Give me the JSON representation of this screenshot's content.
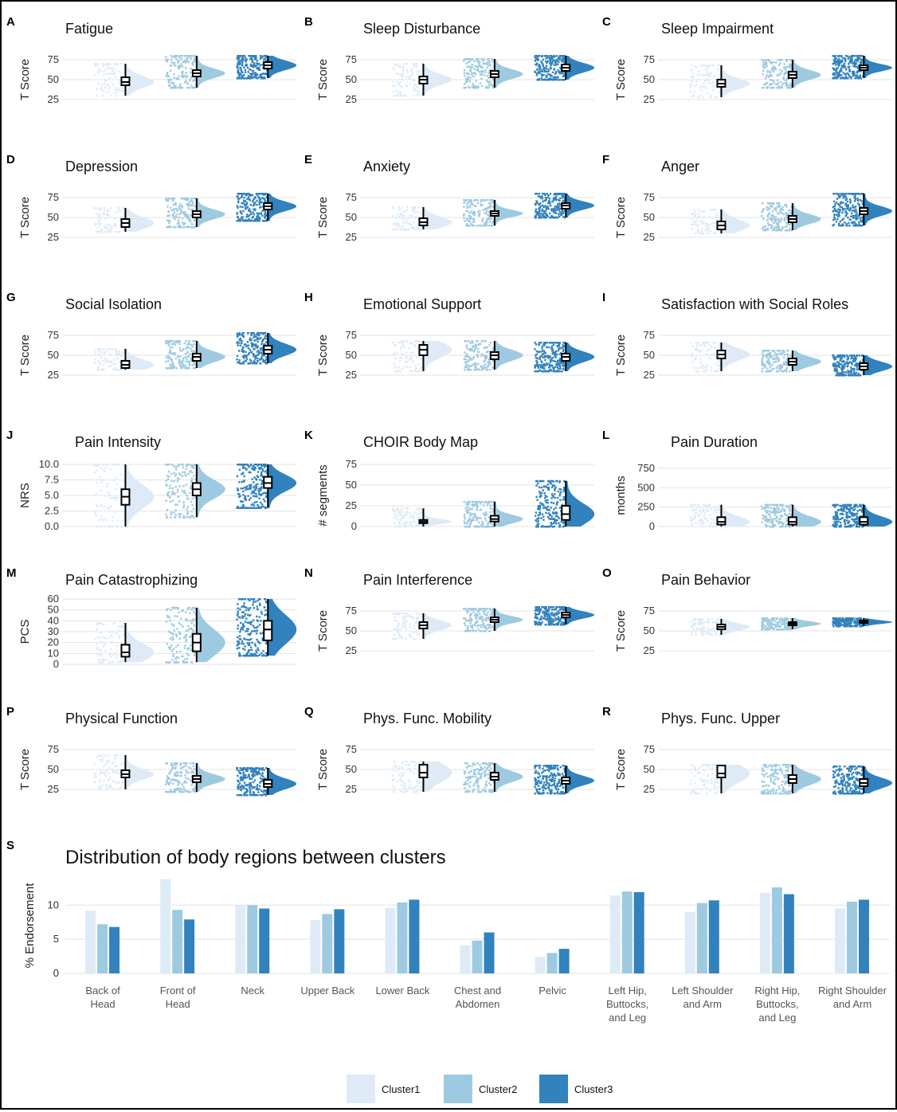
{
  "colors": {
    "c1": "#deebf7",
    "c2": "#9ecae1",
    "c3": "#3182bd"
  },
  "chart_data": [
    {
      "type": "violin",
      "letter": "A",
      "title": "Fatigue",
      "ylabel": "T Score",
      "ylim": [
        20,
        80
      ],
      "ticks": [
        "25",
        "50",
        "75"
      ],
      "tickvals": [
        25,
        50,
        75
      ],
      "clusters": [
        {
          "median": 47,
          "q1": 43,
          "q3": 53,
          "min": 30,
          "max": 70
        },
        {
          "median": 58,
          "q1": 54,
          "q3": 62,
          "min": 40,
          "max": 80
        },
        {
          "median": 68,
          "q1": 64,
          "q3": 72,
          "min": 52,
          "max": 80
        }
      ]
    },
    {
      "type": "violin",
      "letter": "B",
      "title": "Sleep Disturbance",
      "ylabel": "T Score",
      "ylim": [
        20,
        80
      ],
      "ticks": [
        "25",
        "50",
        "75"
      ],
      "tickvals": [
        25,
        50,
        75
      ],
      "clusters": [
        {
          "median": 50,
          "q1": 45,
          "q3": 54,
          "min": 30,
          "max": 70
        },
        {
          "median": 57,
          "q1": 53,
          "q3": 61,
          "min": 40,
          "max": 76
        },
        {
          "median": 65,
          "q1": 61,
          "q3": 69,
          "min": 50,
          "max": 80
        }
      ]
    },
    {
      "type": "violin",
      "letter": "C",
      "title": "Sleep Impairment",
      "ylabel": "T Score",
      "ylim": [
        20,
        80
      ],
      "ticks": [
        "25",
        "50",
        "75"
      ],
      "tickvals": [
        25,
        50,
        75
      ],
      "clusters": [
        {
          "median": 45,
          "q1": 41,
          "q3": 50,
          "min": 28,
          "max": 68
        },
        {
          "median": 56,
          "q1": 52,
          "q3": 60,
          "min": 40,
          "max": 75
        },
        {
          "median": 65,
          "q1": 62,
          "q3": 68,
          "min": 52,
          "max": 80
        }
      ]
    },
    {
      "type": "violin",
      "letter": "D",
      "title": "Depression",
      "ylabel": "T Score",
      "ylim": [
        20,
        80
      ],
      "ticks": [
        "25",
        "50",
        "75"
      ],
      "tickvals": [
        25,
        50,
        75
      ],
      "clusters": [
        {
          "median": 43,
          "q1": 38,
          "q3": 48,
          "min": 32,
          "max": 62
        },
        {
          "median": 54,
          "q1": 50,
          "q3": 58,
          "min": 38,
          "max": 74
        },
        {
          "median": 64,
          "q1": 60,
          "q3": 68,
          "min": 46,
          "max": 80
        }
      ]
    },
    {
      "type": "violin",
      "letter": "E",
      "title": "Anxiety",
      "ylabel": "T Score",
      "ylim": [
        20,
        80
      ],
      "ticks": [
        "25",
        "50",
        "75"
      ],
      "tickvals": [
        25,
        50,
        75
      ],
      "clusters": [
        {
          "median": 44,
          "q1": 40,
          "q3": 49,
          "min": 35,
          "max": 63
        },
        {
          "median": 55,
          "q1": 52,
          "q3": 58,
          "min": 40,
          "max": 72
        },
        {
          "median": 65,
          "q1": 61,
          "q3": 68,
          "min": 50,
          "max": 80
        }
      ]
    },
    {
      "type": "violin",
      "letter": "F",
      "title": "Anger",
      "ylabel": "T Score",
      "ylim": [
        20,
        80
      ],
      "ticks": [
        "25",
        "50",
        "75"
      ],
      "tickvals": [
        25,
        50,
        75
      ],
      "clusters": [
        {
          "median": 40,
          "q1": 35,
          "q3": 45,
          "min": 30,
          "max": 60
        },
        {
          "median": 48,
          "q1": 44,
          "q3": 52,
          "min": 34,
          "max": 68
        },
        {
          "median": 58,
          "q1": 54,
          "q3": 62,
          "min": 40,
          "max": 80
        }
      ]
    },
    {
      "type": "violin",
      "letter": "G",
      "title": "Social Isolation",
      "ylabel": "T Score",
      "ylim": [
        20,
        80
      ],
      "ticks": [
        "25",
        "50",
        "75"
      ],
      "tickvals": [
        25,
        50,
        75
      ],
      "clusters": [
        {
          "median": 38,
          "q1": 34,
          "q3": 43,
          "min": 32,
          "max": 58
        },
        {
          "median": 48,
          "q1": 43,
          "q3": 52,
          "min": 34,
          "max": 68
        },
        {
          "median": 57,
          "q1": 52,
          "q3": 62,
          "min": 40,
          "max": 78
        }
      ]
    },
    {
      "type": "violin",
      "letter": "H",
      "title": "Emotional Support",
      "ylabel": "T Score",
      "ylim": [
        20,
        80
      ],
      "ticks": [
        "25",
        "50",
        "75"
      ],
      "tickvals": [
        25,
        50,
        75
      ],
      "clusters": [
        {
          "median": 57,
          "q1": 50,
          "q3": 63,
          "min": 30,
          "max": 68
        },
        {
          "median": 50,
          "q1": 45,
          "q3": 54,
          "min": 32,
          "max": 68
        },
        {
          "median": 48,
          "q1": 43,
          "q3": 52,
          "min": 30,
          "max": 66
        }
      ]
    },
    {
      "type": "violin",
      "letter": "I",
      "title": "Satisfaction with Social Roles",
      "ylabel": "T Score",
      "ylim": [
        20,
        80
      ],
      "ticks": [
        "25",
        "50",
        "75"
      ],
      "tickvals": [
        25,
        50,
        75
      ],
      "clusters": [
        {
          "median": 51,
          "q1": 46,
          "q3": 56,
          "min": 30,
          "max": 66
        },
        {
          "median": 42,
          "q1": 38,
          "q3": 46,
          "min": 30,
          "max": 56
        },
        {
          "median": 36,
          "q1": 32,
          "q3": 40,
          "min": 25,
          "max": 50
        }
      ]
    },
    {
      "type": "violin",
      "letter": "J",
      "title": "Pain Intensity",
      "ylabel": "NRS",
      "ylim": [
        0,
        10
      ],
      "ticks": [
        "0.0",
        "2.5",
        "5.0",
        "7.5",
        "10.0"
      ],
      "tickvals": [
        0,
        2.5,
        5,
        7.5,
        10
      ],
      "clusters": [
        {
          "median": 4.8,
          "q1": 3.5,
          "q3": 6.0,
          "min": 0,
          "max": 10
        },
        {
          "median": 6.0,
          "q1": 5.0,
          "q3": 7.0,
          "min": 1.5,
          "max": 10
        },
        {
          "median": 7.0,
          "q1": 6.2,
          "q3": 8.0,
          "min": 3,
          "max": 10
        }
      ]
    },
    {
      "type": "violin",
      "letter": "K",
      "title": "CHOIR Body Map",
      "ylabel": "# segments",
      "ylim": [
        0,
        75
      ],
      "ticks": [
        "0",
        "25",
        "50",
        "75"
      ],
      "tickvals": [
        0,
        25,
        50,
        75
      ],
      "clusters": [
        {
          "median": 6,
          "q1": 4,
          "q3": 8,
          "min": 0,
          "max": 22
        },
        {
          "median": 9,
          "q1": 6,
          "q3": 13,
          "min": 0,
          "max": 30
        },
        {
          "median": 15,
          "q1": 8,
          "q3": 25,
          "min": 0,
          "max": 55
        }
      ]
    },
    {
      "type": "violin",
      "letter": "L",
      "title": "Pain Duration",
      "ylabel": "months",
      "ylim": [
        0,
        800
      ],
      "ticks": [
        "0",
        "250",
        "500",
        "750"
      ],
      "tickvals": [
        0,
        250,
        500,
        750
      ],
      "clusters": [
        {
          "median": 60,
          "q1": 25,
          "q3": 120,
          "min": 0,
          "max": 280
        },
        {
          "median": 60,
          "q1": 25,
          "q3": 120,
          "min": 0,
          "max": 280
        },
        {
          "median": 60,
          "q1": 25,
          "q3": 120,
          "min": 0,
          "max": 280
        }
      ]
    },
    {
      "type": "violin",
      "letter": "M",
      "title": "Pain Catastrophizing",
      "ylabel": "PCS",
      "ylim": [
        0,
        60
      ],
      "ticks": [
        "0",
        "10",
        "20",
        "30",
        "40",
        "50",
        "60"
      ],
      "tickvals": [
        0,
        10,
        20,
        30,
        40,
        50,
        60
      ],
      "clusters": [
        {
          "median": 11,
          "q1": 7,
          "q3": 18,
          "min": 2,
          "max": 38
        },
        {
          "median": 20,
          "q1": 12,
          "q3": 28,
          "min": 2,
          "max": 52
        },
        {
          "median": 32,
          "q1": 22,
          "q3": 40,
          "min": 8,
          "max": 60
        }
      ]
    },
    {
      "type": "violin",
      "letter": "N",
      "title": "Pain Interference",
      "ylabel": "T Score",
      "ylim": [
        20,
        80
      ],
      "ticks": [
        "25",
        "50",
        "75"
      ],
      "tickvals": [
        25,
        50,
        75
      ],
      "clusters": [
        {
          "median": 57,
          "q1": 53,
          "q3": 61,
          "min": 40,
          "max": 72
        },
        {
          "median": 64,
          "q1": 61,
          "q3": 67,
          "min": 50,
          "max": 78
        },
        {
          "median": 70,
          "q1": 67,
          "q3": 73,
          "min": 58,
          "max": 80
        }
      ]
    },
    {
      "type": "violin",
      "letter": "O",
      "title": "Pain Behavior",
      "ylabel": "T Score",
      "ylim": [
        20,
        80
      ],
      "ticks": [
        "25",
        "50",
        "75"
      ],
      "tickvals": [
        25,
        50,
        75
      ],
      "clusters": [
        {
          "median": 55,
          "q1": 52,
          "q3": 58,
          "min": 45,
          "max": 65
        },
        {
          "median": 59,
          "q1": 57,
          "q3": 61,
          "min": 52,
          "max": 66
        },
        {
          "median": 61,
          "q1": 60,
          "q3": 63,
          "min": 56,
          "max": 66
        }
      ]
    },
    {
      "type": "violin",
      "letter": "P",
      "title": "Physical Function",
      "ylabel": "T Score",
      "ylim": [
        20,
        80
      ],
      "ticks": [
        "25",
        "50",
        "75"
      ],
      "tickvals": [
        25,
        50,
        75
      ],
      "clusters": [
        {
          "median": 44,
          "q1": 40,
          "q3": 49,
          "min": 25,
          "max": 68
        },
        {
          "median": 38,
          "q1": 34,
          "q3": 42,
          "min": 22,
          "max": 58
        },
        {
          "median": 32,
          "q1": 28,
          "q3": 37,
          "min": 18,
          "max": 52
        }
      ]
    },
    {
      "type": "violin",
      "letter": "Q",
      "title": "Phys. Func. Mobility",
      "ylabel": "T Score",
      "ylim": [
        20,
        80
      ],
      "ticks": [
        "25",
        "50",
        "75"
      ],
      "tickvals": [
        25,
        50,
        75
      ],
      "clusters": [
        {
          "median": 46,
          "q1": 40,
          "q3": 56,
          "min": 22,
          "max": 60
        },
        {
          "median": 41,
          "q1": 37,
          "q3": 46,
          "min": 22,
          "max": 58
        },
        {
          "median": 36,
          "q1": 32,
          "q3": 40,
          "min": 20,
          "max": 55
        }
      ]
    },
    {
      "type": "violin",
      "letter": "R",
      "title": "Phys. Func. Upper",
      "ylabel": "T Score",
      "ylim": [
        20,
        80
      ],
      "ticks": [
        "25",
        "50",
        "75"
      ],
      "tickvals": [
        25,
        50,
        75
      ],
      "clusters": [
        {
          "median": 45,
          "q1": 40,
          "q3": 55,
          "min": 20,
          "max": 56
        },
        {
          "median": 38,
          "q1": 33,
          "q3": 43,
          "min": 20,
          "max": 56
        },
        {
          "median": 33,
          "q1": 29,
          "q3": 38,
          "min": 20,
          "max": 54
        }
      ]
    },
    {
      "type": "bar",
      "letter": "S",
      "title": "Distribution of body regions between clusters",
      "ylabel": "% Endorsement",
      "ylim": [
        0,
        14
      ],
      "ticks": [
        "0",
        "5",
        "10"
      ],
      "tickvals": [
        0,
        5,
        10
      ],
      "categories": [
        [
          "Back of",
          "Head"
        ],
        [
          "Front of",
          "Head"
        ],
        [
          "Neck"
        ],
        [
          "Upper Back"
        ],
        [
          "Lower Back"
        ],
        [
          "Chest and",
          "Abdomen"
        ],
        [
          "Pelvic"
        ],
        [
          "Left Hip,",
          "Buttocks,",
          "and Leg"
        ],
        [
          "Left Shoulder",
          "and Arm"
        ],
        [
          "Right Hip,",
          "Buttocks,",
          "and Leg"
        ],
        [
          "Right Shoulder",
          "and Arm"
        ]
      ],
      "series": [
        {
          "name": "Cluster1",
          "values": [
            9.2,
            13.8,
            10.0,
            7.8,
            9.6,
            4.1,
            2.4,
            11.4,
            9.0,
            11.8,
            9.5
          ]
        },
        {
          "name": "Cluster2",
          "values": [
            7.2,
            9.3,
            10.0,
            8.7,
            10.4,
            4.8,
            3.0,
            12.0,
            10.3,
            12.6,
            10.5
          ]
        },
        {
          "name": "Cluster3",
          "values": [
            6.8,
            7.9,
            9.5,
            9.4,
            10.8,
            6.0,
            3.6,
            11.9,
            10.7,
            11.6,
            10.8
          ]
        }
      ]
    }
  ],
  "legend": [
    "Cluster1",
    "Cluster2",
    "Cluster3"
  ]
}
